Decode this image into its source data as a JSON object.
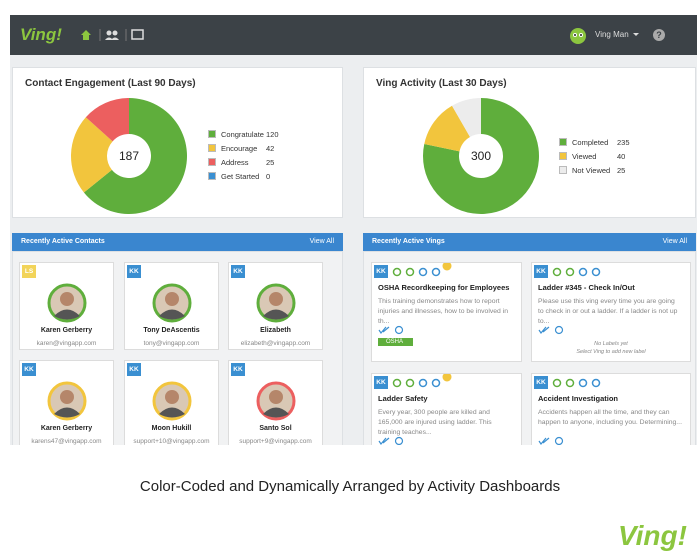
{
  "header": {
    "brand": "Ving!",
    "user": "Ving Man"
  },
  "contact_engagement": {
    "title": "Contact Engagement (Last 90 Days)",
    "total": 187,
    "segments": [
      {
        "name": "Congratulate",
        "value": 120,
        "color": "#5fae3c"
      },
      {
        "name": "Encourage",
        "value": 42,
        "color": "#f2c53d"
      },
      {
        "name": "Address",
        "value": 25,
        "color": "#ec5f5f"
      },
      {
        "name": "Get Started",
        "value": 0,
        "color": "#3a8fd1"
      }
    ]
  },
  "ving_activity": {
    "title": "Ving Activity (Last 30 Days)",
    "total": 300,
    "segments": [
      {
        "name": "Completed",
        "value": 235,
        "color": "#5fae3c"
      },
      {
        "name": "Viewed",
        "value": 40,
        "color": "#f2c53d"
      },
      {
        "name": "Not Viewed",
        "value": 25,
        "color": "#ececec"
      }
    ]
  },
  "recent_contacts": {
    "title": "Recently Active Contacts",
    "view_all": "View All",
    "cards": [
      {
        "badge": "LS",
        "name": "Karen Gerberry",
        "email": "karen@vingapp.com",
        "badge_color": "#f2d45a",
        "ring": "#5fae3c"
      },
      {
        "badge": "KK",
        "name": "Tony DeAscentis",
        "email": "tony@vingapp.com",
        "badge_color": "#3a8fd1",
        "ring": "#5fae3c"
      },
      {
        "badge": "KK",
        "name": "Elizabeth",
        "email": "elizabeth@vingapp.com",
        "badge_color": "#3a8fd1",
        "ring": "#5fae3c"
      },
      {
        "badge": "KK",
        "name": "Karen Gerberry",
        "email": "karens47@vingapp.com",
        "badge_color": "#3a8fd1",
        "ring": "#f2c53d"
      },
      {
        "badge": "KK",
        "name": "Moon Hukill",
        "email": "support+10@vingapp.com",
        "badge_color": "#3a8fd1",
        "ring": "#f2c53d"
      },
      {
        "badge": "KK",
        "name": "Santo Sol",
        "email": "support+9@vingapp.com",
        "badge_color": "#3a8fd1",
        "ring": "#ec5f5f"
      }
    ]
  },
  "recent_vings": {
    "title": "Recently Active Vings",
    "view_all": "View All",
    "cards": [
      {
        "badge": "KK",
        "title": "OSHA Recordkeeping for Employees",
        "description": "This training demonstrates how to report injuries and illnesses, how to be involved in th...",
        "tag": "OSHA"
      },
      {
        "badge": "KK",
        "title": "Ladder #345 - Check In/Out",
        "description": "Please use this ving every time you are going to check in or out a ladder. If a ladder is not up to...",
        "no_labels": "No Labels yet",
        "hint": "Select Ving to add new label"
      },
      {
        "badge": "KK",
        "title": "Ladder Safety",
        "description": "Every year, 300 people are killed and 165,000 are injured using ladder. This training teaches..."
      },
      {
        "badge": "KK",
        "title": "Accident Investigation",
        "description": "Accidents happen all the time, and they can happen to anyone, including you. Determining..."
      }
    ]
  },
  "caption": "Color-Coded and Dynamically Arranged by Activity Dashboards",
  "footer_logo": "Ving!"
}
